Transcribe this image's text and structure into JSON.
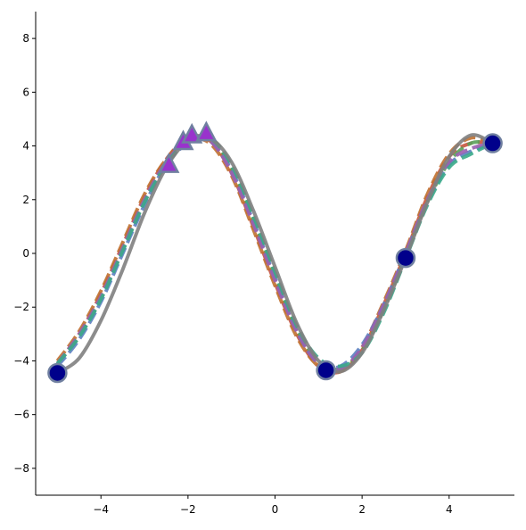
{
  "chart_data": {
    "type": "line",
    "x": [
      -5,
      -4.5,
      -4,
      -3.5,
      -3,
      -2.5,
      -2,
      -1.5,
      -1,
      -0.5,
      0,
      0.5,
      1,
      1.5,
      2,
      2.5,
      3,
      3.5,
      4,
      4.5,
      5
    ],
    "series": [
      {
        "color": "#c8553d",
        "style": "dashed",
        "values": [
          -4.1,
          -3.0,
          -1.5,
          0.3,
          2.1,
          3.5,
          4.3,
          4.2,
          3.0,
          1.0,
          -1.1,
          -3.0,
          -4.2,
          -4.4,
          -3.6,
          -1.9,
          0.0,
          2.1,
          3.6,
          4.1,
          4.1
        ]
      },
      {
        "color": "#5aa05a",
        "style": "dashed",
        "values": [
          -4.1,
          -3.1,
          -1.7,
          0.1,
          1.9,
          3.4,
          4.2,
          4.3,
          3.2,
          1.3,
          -0.8,
          -2.8,
          -4.0,
          -4.3,
          -3.6,
          -2.1,
          -0.1,
          1.9,
          3.4,
          4.1,
          4.1
        ]
      },
      {
        "color": "#c07030",
        "style": "dashed",
        "values": [
          -4.0,
          -2.9,
          -1.4,
          0.4,
          2.2,
          3.5,
          4.2,
          4.1,
          2.9,
          0.9,
          -1.2,
          -3.1,
          -4.2,
          -4.4,
          -3.5,
          -1.8,
          0.1,
          2.2,
          3.7,
          4.3,
          4.1
        ]
      },
      {
        "color": "#5b7fc0",
        "style": "dashed",
        "values": [
          -4.2,
          -3.2,
          -1.8,
          0.0,
          1.8,
          3.3,
          4.1,
          4.2,
          3.1,
          1.2,
          -0.9,
          -2.9,
          -4.1,
          -4.2,
          -3.4,
          -1.9,
          0.0,
          1.9,
          3.3,
          3.8,
          4.1
        ]
      },
      {
        "color": "#9a60b0",
        "style": "dashed",
        "values": [
          -4.1,
          -3.0,
          -1.6,
          0.2,
          2.0,
          3.4,
          4.2,
          4.2,
          3.0,
          1.1,
          -1.0,
          -2.9,
          -4.1,
          -4.3,
          -3.5,
          -1.9,
          0.0,
          2.0,
          3.4,
          3.9,
          4.1
        ]
      },
      {
        "color": "#3aaa8a",
        "style": "dashed",
        "values": [
          -4.1,
          -3.1,
          -1.7,
          0.1,
          1.9,
          3.3,
          4.2,
          4.3,
          3.3,
          1.4,
          -0.7,
          -2.7,
          -3.9,
          -4.2,
          -3.7,
          -2.2,
          -0.2,
          1.8,
          3.2,
          3.7,
          4.1
        ]
      },
      {
        "color": "#808080",
        "style": "solid",
        "values": [
          -4.45,
          -3.9,
          -2.5,
          -0.6,
          1.5,
          3.2,
          4.2,
          4.3,
          3.4,
          1.6,
          -0.5,
          -2.6,
          -4.0,
          -4.4,
          -3.7,
          -2.1,
          -0.17,
          1.9,
          3.6,
          4.4,
          4.1
        ]
      }
    ],
    "points": [
      {
        "marker": "circle",
        "color": "#00008b",
        "x": [
          -5,
          1.17,
          3,
          5
        ],
        "values": [
          -4.45,
          -4.35,
          -0.17,
          4.1
        ]
      },
      {
        "marker": "triangle",
        "color": "#9933cc",
        "x": [
          -2.44,
          -2.11,
          -1.91,
          -1.58
        ],
        "values": [
          3.3,
          4.15,
          4.4,
          4.48
        ]
      }
    ],
    "xlim": [
      -5.5,
      5.5
    ],
    "ylim": [
      -9,
      9
    ],
    "xticks": [
      {
        "value": -4,
        "label": "−4"
      },
      {
        "value": -2,
        "label": "−2"
      },
      0,
      2,
      4
    ],
    "yticks": [
      {
        "value": -8,
        "label": "−8"
      },
      {
        "value": -6,
        "label": "−6"
      },
      {
        "value": -4,
        "label": "−4"
      },
      {
        "value": -2,
        "label": "−2"
      },
      0,
      2,
      4,
      6,
      8
    ]
  }
}
